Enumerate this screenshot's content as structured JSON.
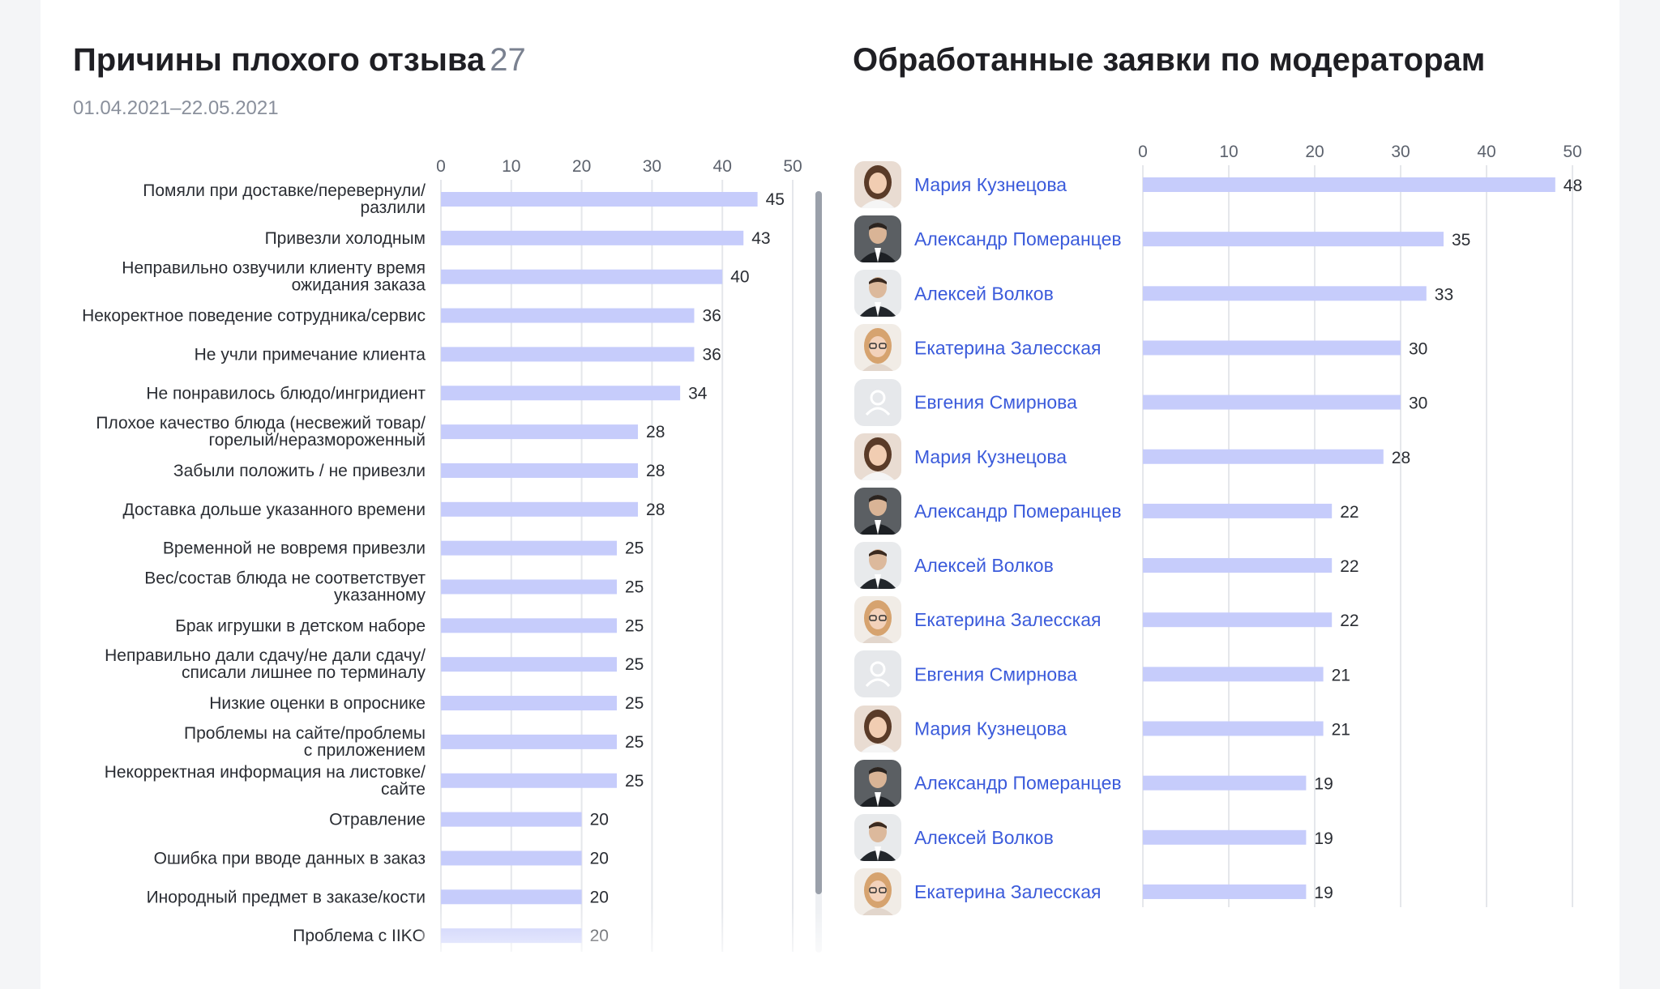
{
  "left_panel": {
    "title": "Причины плохого отзыва",
    "count": "27",
    "date_range": "01.04.2021–22.05.2021"
  },
  "right_panel": {
    "title": "Обработанные заявки по модераторам"
  },
  "colors": {
    "bar": "#c6ccfb",
    "name_link": "#3b5bdb",
    "grid": "#e5e7eb"
  },
  "chart_data": [
    {
      "type": "bar",
      "orientation": "horizontal",
      "xlim": [
        0,
        50
      ],
      "ticks": [
        0,
        10,
        20,
        30,
        40,
        50
      ],
      "categories": [
        "Помяли при доставке/перевернули/\nразлили",
        "Привезли холодным",
        "Неправильно озвучили клиенту время\nожидания заказа",
        "Некоректное поведение сотрудника/сервис",
        "Не учли примечание клиента",
        "Не понравилось блюдо/ингридиент",
        "Плохое качество блюда (несвежий товар/\nгорелый/неразмороженный",
        "Забыли положить / не привезли",
        "Доставка дольше указанного времени",
        "Временной не вовремя привезли",
        "Вес/состав блюда не соответствует\nуказанному",
        "Брак игрушки в детском наборе",
        "Неправильно дали сдачу/не дали сдачу/\nсписали лишнее по терминалу",
        "Низкие оценки в опроснике",
        "Проблемы на сайте/проблемы\nс приложением",
        "Некорректная информация на листовке/\nсайте",
        "Отравление",
        "Ошибка при вводе данных в заказ",
        "Инородный предмет в заказе/кости",
        "Проблема с IIKO"
      ],
      "values": [
        45,
        43,
        40,
        36,
        36,
        34,
        28,
        28,
        28,
        25,
        25,
        25,
        25,
        25,
        25,
        25,
        20,
        20,
        20,
        20
      ]
    },
    {
      "type": "bar",
      "orientation": "horizontal",
      "xlim": [
        0,
        50
      ],
      "ticks": [
        0,
        10,
        20,
        30,
        40,
        50
      ],
      "categories": [
        "Мария Кузнецова",
        "Александр Померанцев",
        "Алексей Волков",
        "Екатерина Залесская",
        "Евгения Смирнова",
        "Мария Кузнецова",
        "Александр Померанцев",
        "Алексей Волков",
        "Екатерина Залесская",
        "Евгения Смирнова",
        "Мария Кузнецова",
        "Александр Померанцев",
        "Алексей Волков",
        "Екатерина Залесская"
      ],
      "avatars": [
        "woman-brunette-avatar",
        "man-dark-suit-avatar",
        "man-light-suit-avatar",
        "woman-blonde-glasses-avatar",
        "placeholder-user-icon",
        "woman-brunette-avatar",
        "man-dark-suit-avatar",
        "man-light-suit-avatar",
        "woman-blonde-glasses-avatar",
        "placeholder-user-icon",
        "woman-brunette-avatar",
        "man-dark-suit-avatar",
        "man-light-suit-avatar",
        "woman-blonde-glasses-avatar"
      ],
      "values": [
        48,
        35,
        33,
        30,
        30,
        28,
        22,
        22,
        22,
        21,
        21,
        19,
        19,
        19
      ]
    }
  ]
}
